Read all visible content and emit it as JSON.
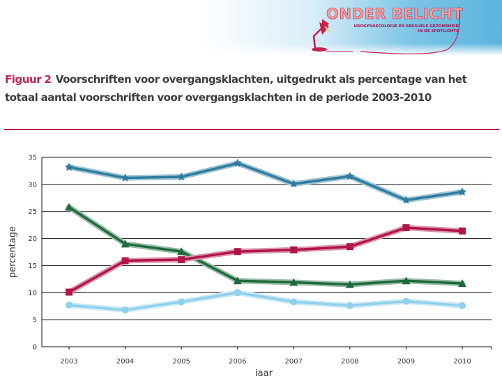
{
  "logo": {
    "title": "ONDER BELICHT",
    "subtitle_line1": "UROGYNAECOLOGIE EN SEKSUELE GEZONDHEID",
    "subtitle_line2": "IN DE SPOTLIGHTS",
    "colors": {
      "title": "#f3a39a",
      "outline": "#b7235a",
      "lamp": "#c5224f"
    }
  },
  "figure": {
    "label": "Figuur 2",
    "caption": "Voorschriften voor overgangsklachten, uitgedrukt als percentage van het totaal aantal voorschriften voor overgangsklachten in de periode 2003-2010"
  },
  "chart_data": {
    "type": "line",
    "title": "",
    "xlabel": "jaar",
    "ylabel": "percentage",
    "x": [
      "2003",
      "2004",
      "2005",
      "2006",
      "2007",
      "2008",
      "2009",
      "2010"
    ],
    "y_ticks": [
      "0",
      "5",
      "10",
      "15",
      "20",
      "25",
      "30",
      "35"
    ],
    "ylim": [
      0,
      35
    ],
    "grid": true,
    "series": [
      {
        "name": "series-dark-blue",
        "color": "#2e7ca0",
        "marker": "star",
        "values": [
          33.2,
          31.2,
          31.4,
          33.9,
          30.1,
          31.5,
          27.1,
          28.6
        ]
      },
      {
        "name": "series-green",
        "color": "#1f6a3c",
        "marker": "triangle",
        "values": [
          25.8,
          19.0,
          17.6,
          12.2,
          11.9,
          11.5,
          12.2,
          11.7
        ]
      },
      {
        "name": "series-crimson",
        "color": "#b0154a",
        "marker": "square",
        "values": [
          10.1,
          15.9,
          16.1,
          17.6,
          17.9,
          18.5,
          22.0,
          21.4
        ]
      },
      {
        "name": "series-light-blue",
        "color": "#8fd0ec",
        "marker": "circle",
        "values": [
          7.7,
          6.8,
          8.3,
          10.0,
          8.3,
          7.6,
          8.4,
          7.6
        ]
      }
    ]
  }
}
